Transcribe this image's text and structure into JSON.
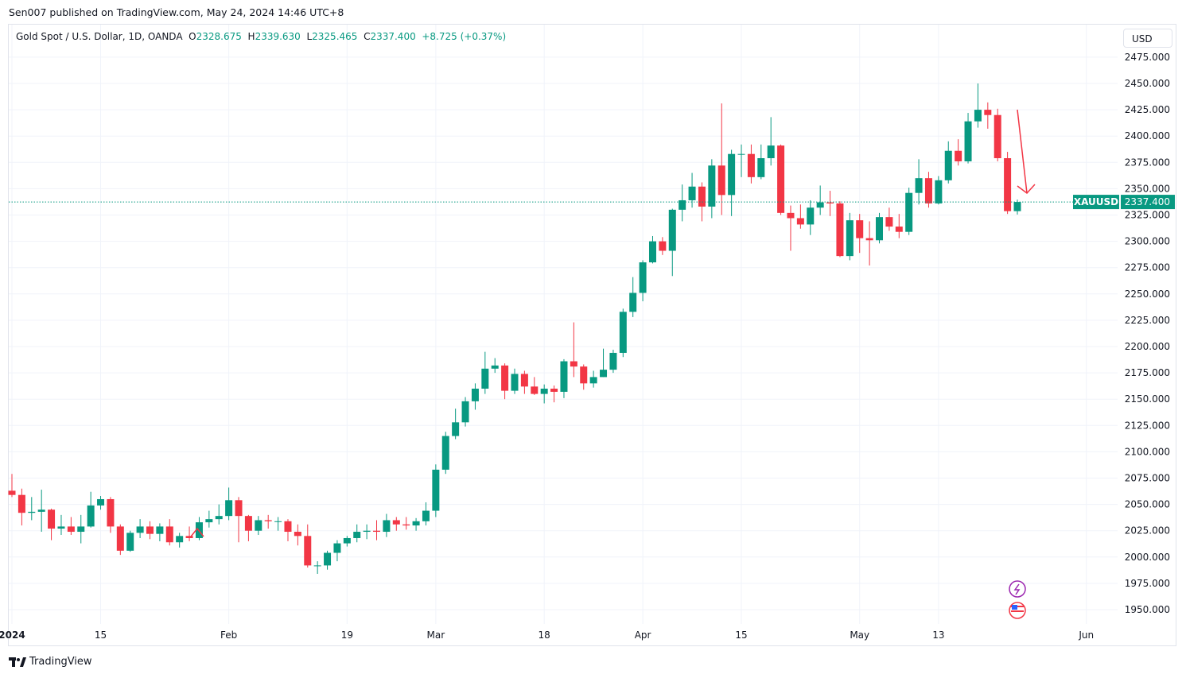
{
  "header": {
    "published": "Sen007 published on TradingView.com, May 24, 2024 14:46 UTC+8"
  },
  "legend": {
    "symbol": "Gold Spot / U.S. Dollar, 1D, OANDA",
    "o_label": "O",
    "o": "2328.675",
    "h_label": "H",
    "h": "2339.630",
    "l_label": "L",
    "l": "2325.465",
    "c_label": "C",
    "c": "2337.400",
    "change": "+8.725 (+0.37%)"
  },
  "currency": "USD",
  "price_tag": {
    "symbol": "XAUUSD",
    "price": "2337.400"
  },
  "footer": {
    "brand": "TradingView"
  },
  "colors": {
    "up": "#089981",
    "down": "#f23645",
    "arrow": "#f23645"
  },
  "chart_data": {
    "type": "candlestick",
    "title": "Gold Spot / U.S. Dollar, 1D, OANDA",
    "ylim": [
      1935,
      2490
    ],
    "y_ticks": [
      "2475.000",
      "2450.000",
      "2425.000",
      "2400.000",
      "2375.000",
      "2350.000",
      "2325.000",
      "2300.000",
      "2275.000",
      "2250.000",
      "2225.000",
      "2200.000",
      "2175.000",
      "2150.000",
      "2125.000",
      "2100.000",
      "2075.000",
      "2050.000",
      "2025.000",
      "2000.000",
      "1975.000",
      "1950.000"
    ],
    "x_ticks": [
      {
        "label": "2024",
        "index": 0
      },
      {
        "label": "15",
        "index": 9
      },
      {
        "label": "Feb",
        "index": 22
      },
      {
        "label": "19",
        "index": 34
      },
      {
        "label": "Mar",
        "index": 43
      },
      {
        "label": "18",
        "index": 54
      },
      {
        "label": "Apr",
        "index": 64
      },
      {
        "label": "15",
        "index": 74
      },
      {
        "label": "May",
        "index": 86
      },
      {
        "label": "13",
        "index": 94
      },
      {
        "label": "Jun",
        "index": 109
      }
    ],
    "last_price": 2337.4,
    "candles": [
      [
        "Jan 2",
        2063,
        2079,
        2057,
        2059
      ],
      [
        "Jan 3",
        2059,
        2065,
        2030,
        2042
      ],
      [
        "Jan 4",
        2042,
        2057,
        2035,
        2043
      ],
      [
        "Jan 5",
        2043,
        2064,
        2024,
        2045
      ],
      [
        "Jan 8",
        2045,
        2046,
        2016,
        2027
      ],
      [
        "Jan 9",
        2027,
        2040,
        2021,
        2029
      ],
      [
        "Jan 10",
        2029,
        2038,
        2021,
        2024
      ],
      [
        "Jan 11",
        2024,
        2040,
        2013,
        2029
      ],
      [
        "Jan 12",
        2029,
        2062,
        2028,
        2049
      ],
      [
        "Jan 15",
        2049,
        2058,
        2045,
        2055
      ],
      [
        "Jan 16",
        2055,
        2057,
        2023,
        2029
      ],
      [
        "Jan 17",
        2029,
        2031,
        2002,
        2006
      ],
      [
        "Jan 18",
        2006,
        2025,
        2005,
        2023
      ],
      [
        "Jan 19",
        2023,
        2036,
        2018,
        2029
      ],
      [
        "Jan 22",
        2029,
        2034,
        2017,
        2022
      ],
      [
        "Jan 23",
        2022,
        2032,
        2015,
        2029
      ],
      [
        "Jan 24",
        2029,
        2036,
        2011,
        2014
      ],
      [
        "Jan 25",
        2014,
        2023,
        2009,
        2020
      ],
      [
        "Jan 26",
        2020,
        2029,
        2015,
        2018
      ],
      [
        "Jan 29",
        2018,
        2038,
        2016,
        2033
      ],
      [
        "Jan 30",
        2033,
        2044,
        2028,
        2036
      ],
      [
        "Jan 31",
        2036,
        2050,
        2031,
        2039
      ],
      [
        "Feb 1",
        2039,
        2066,
        2035,
        2054
      ],
      [
        "Feb 2",
        2054,
        2057,
        2014,
        2039
      ],
      [
        "Feb 5",
        2039,
        2040,
        2015,
        2025
      ],
      [
        "Feb 6",
        2025,
        2039,
        2021,
        2035
      ],
      [
        "Feb 7",
        2035,
        2040,
        2027,
        2034
      ],
      [
        "Feb 8",
        2034,
        2038,
        2025,
        2034
      ],
      [
        "Feb 9",
        2034,
        2036,
        2015,
        2024
      ],
      [
        "Feb 12",
        2024,
        2031,
        2011,
        2020
      ],
      [
        "Feb 13",
        2020,
        2031,
        1990,
        1992
      ],
      [
        "Feb 14",
        1992,
        1996,
        1984,
        1992
      ],
      [
        "Feb 15",
        1992,
        2006,
        1988,
        2004
      ],
      [
        "Feb 16",
        2004,
        2016,
        1996,
        2013
      ],
      [
        "Feb 19",
        2013,
        2020,
        2010,
        2018
      ],
      [
        "Feb 20",
        2018,
        2031,
        2014,
        2024
      ],
      [
        "Feb 21",
        2024,
        2031,
        2017,
        2025
      ],
      [
        "Feb 22",
        2025,
        2035,
        2016,
        2024
      ],
      [
        "Feb 23",
        2024,
        2041,
        2019,
        2035
      ],
      [
        "Feb 26",
        2035,
        2038,
        2025,
        2031
      ],
      [
        "Feb 27",
        2031,
        2038,
        2026,
        2030
      ],
      [
        "Feb 28",
        2030,
        2037,
        2025,
        2034
      ],
      [
        "Feb 29",
        2034,
        2052,
        2030,
        2044
      ],
      [
        "Mar 1",
        2044,
        2088,
        2038,
        2083
      ],
      [
        "Mar 4",
        2083,
        2119,
        2079,
        2115
      ],
      [
        "Mar 5",
        2115,
        2141,
        2112,
        2128
      ],
      [
        "Mar 6",
        2128,
        2152,
        2124,
        2148
      ],
      [
        "Mar 7",
        2148,
        2165,
        2140,
        2160
      ],
      [
        "Mar 8",
        2160,
        2195,
        2155,
        2179
      ],
      [
        "Mar 11",
        2179,
        2189,
        2175,
        2182
      ],
      [
        "Mar 12",
        2182,
        2184,
        2150,
        2158
      ],
      [
        "Mar 13",
        2158,
        2179,
        2155,
        2174
      ],
      [
        "Mar 14",
        2174,
        2177,
        2155,
        2162
      ],
      [
        "Mar 15",
        2162,
        2171,
        2154,
        2155
      ],
      [
        "Mar 18",
        2155,
        2164,
        2146,
        2160
      ],
      [
        "Mar 19",
        2160,
        2163,
        2147,
        2157
      ],
      [
        "Mar 20",
        2157,
        2188,
        2151,
        2186
      ],
      [
        "Mar 21",
        2186,
        2223,
        2171,
        2181
      ],
      [
        "Mar 22",
        2181,
        2183,
        2159,
        2165
      ],
      [
        "Mar 25",
        2165,
        2177,
        2161,
        2171
      ],
      [
        "Mar 26",
        2171,
        2198,
        2171,
        2178
      ],
      [
        "Mar 27",
        2178,
        2197,
        2175,
        2194
      ],
      [
        "Mar 28",
        2194,
        2236,
        2190,
        2233
      ],
      [
        "Apr 1",
        2233,
        2266,
        2228,
        2251
      ],
      [
        "Apr 2",
        2251,
        2282,
        2243,
        2280
      ],
      [
        "Apr 3",
        2280,
        2305,
        2279,
        2300
      ],
      [
        "Apr 4",
        2300,
        2304,
        2287,
        2291
      ],
      [
        "Apr 5",
        2291,
        2331,
        2267,
        2330
      ],
      [
        "Apr 8",
        2330,
        2354,
        2319,
        2339
      ],
      [
        "Apr 9",
        2339,
        2365,
        2332,
        2352
      ],
      [
        "Apr 10",
        2352,
        2356,
        2319,
        2333
      ],
      [
        "Apr 11",
        2333,
        2378,
        2322,
        2372
      ],
      [
        "Apr 12",
        2372,
        2431,
        2325,
        2344
      ],
      [
        "Apr 15",
        2344,
        2387,
        2324,
        2383
      ],
      [
        "Apr 16",
        2383,
        2392,
        2361,
        2383
      ],
      [
        "Apr 17",
        2383,
        2392,
        2355,
        2361
      ],
      [
        "Apr 18",
        2361,
        2392,
        2359,
        2379
      ],
      [
        "Apr 19",
        2379,
        2418,
        2372,
        2391
      ],
      [
        "Apr 22",
        2391,
        2392,
        2325,
        2327
      ],
      [
        "Apr 23",
        2327,
        2334,
        2291,
        2322
      ],
      [
        "Apr 24",
        2322,
        2335,
        2312,
        2316
      ],
      [
        "Apr 25",
        2316,
        2339,
        2306,
        2332
      ],
      [
        "Apr 26",
        2332,
        2353,
        2325,
        2337
      ],
      [
        "Apr 29",
        2337,
        2348,
        2324,
        2336
      ],
      [
        "Apr 30",
        2336,
        2338,
        2285,
        2286
      ],
      [
        "May 1",
        2286,
        2327,
        2282,
        2320
      ],
      [
        "May 2",
        2320,
        2326,
        2289,
        2303
      ],
      [
        "May 3",
        2303,
        2319,
        2277,
        2301
      ],
      [
        "May 6",
        2301,
        2327,
        2298,
        2323
      ],
      [
        "May 7",
        2323,
        2332,
        2310,
        2314
      ],
      [
        "May 8",
        2314,
        2326,
        2303,
        2309
      ],
      [
        "May 9",
        2309,
        2351,
        2306,
        2346
      ],
      [
        "May 10",
        2346,
        2378,
        2335,
        2360
      ],
      [
        "May 13",
        2360,
        2366,
        2332,
        2336
      ],
      [
        "May 14",
        2336,
        2362,
        2335,
        2358
      ],
      [
        "May 15",
        2358,
        2395,
        2355,
        2386
      ],
      [
        "May 16",
        2386,
        2397,
        2372,
        2376
      ],
      [
        "May 17",
        2376,
        2422,
        2374,
        2414
      ],
      [
        "May 20",
        2414,
        2450,
        2408,
        2425
      ],
      [
        "May 21",
        2425,
        2432,
        2407,
        2420
      ],
      [
        "May 22",
        2420,
        2426,
        2376,
        2379
      ],
      [
        "May 23",
        2379,
        2385,
        2326,
        2328.675
      ],
      [
        "May 24",
        2328.675,
        2339.63,
        2325.465,
        2337.4
      ]
    ],
    "annotations": [
      {
        "type": "arrow",
        "direction": "down",
        "color": "#f23645",
        "from_price": 2425,
        "to_price": 2346
      }
    ]
  }
}
